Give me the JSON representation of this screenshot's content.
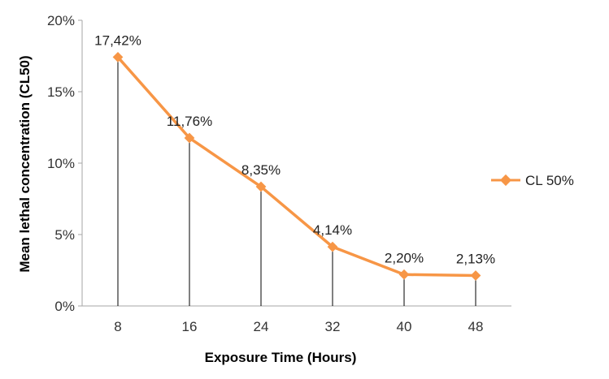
{
  "chart_data": {
    "type": "line",
    "title": "",
    "xlabel": "Exposure Time (Hours)",
    "ylabel": "Mean lethal concentration (CL50)",
    "categories": [
      "8",
      "16",
      "24",
      "32",
      "40",
      "48"
    ],
    "ylim": [
      0,
      20
    ],
    "yticks": [
      "0%",
      "5%",
      "10%",
      "15%",
      "20%"
    ],
    "ytick_values": [
      0,
      5,
      10,
      15,
      20
    ],
    "grid": false,
    "drop_lines": true,
    "legend_position": "right",
    "series": [
      {
        "name": "CL 50%",
        "color": "#f79646",
        "marker": "diamond",
        "values": [
          17.42,
          11.76,
          8.35,
          4.14,
          2.2,
          2.13
        ],
        "data_labels": [
          "17,42%",
          "11,76%",
          "8,35%",
          "4,14%",
          "2,20%",
          "2,13%"
        ]
      }
    ]
  }
}
